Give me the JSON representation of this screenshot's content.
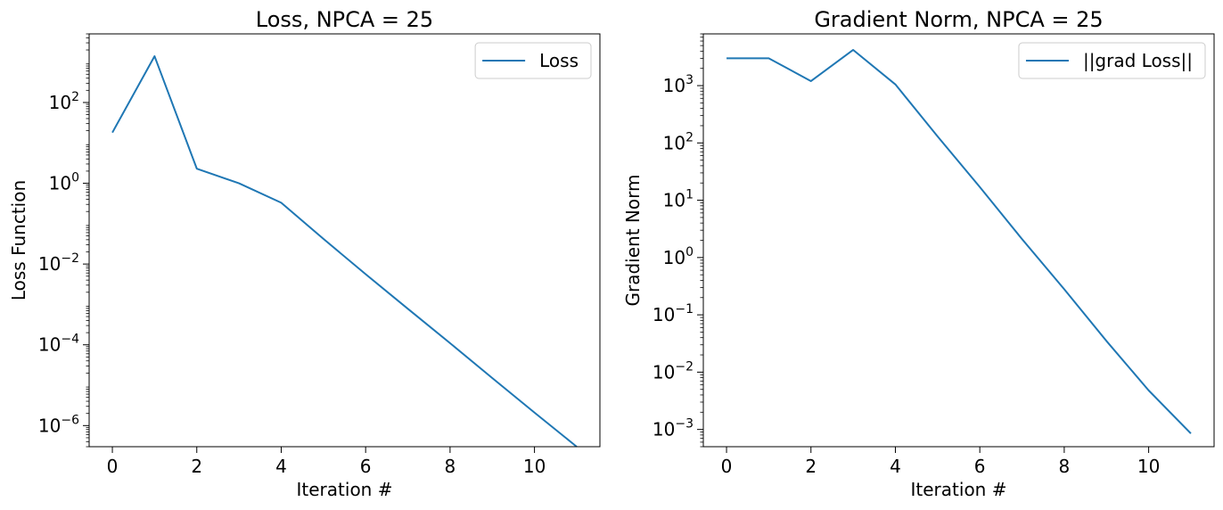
{
  "chart_data": [
    {
      "type": "line",
      "title": "Loss, NPCA = 25",
      "xlabel": "Iteration #",
      "ylabel": "Loss Function",
      "yscale": "log",
      "xlim": [
        -0.55,
        11.55
      ],
      "ylim": [
        3e-07,
        5000
      ],
      "xticks": [
        0,
        2,
        4,
        6,
        8,
        10
      ],
      "yticks": [
        {
          "value": 1e-06,
          "base": "10",
          "exp": "−6"
        },
        {
          "value": 0.0001,
          "base": "10",
          "exp": "−4"
        },
        {
          "value": 0.01,
          "base": "10",
          "exp": "−2"
        },
        {
          "value": 1,
          "base": "10",
          "exp": "0"
        },
        {
          "value": 100,
          "base": "10",
          "exp": "2"
        }
      ],
      "legend": {
        "placement": "top-right"
      },
      "grid": false,
      "series": [
        {
          "name": "Loss",
          "color": "#1f77b4",
          "x": [
            0,
            1,
            2,
            3,
            4,
            5,
            6,
            7,
            8,
            9,
            10,
            11
          ],
          "y": [
            18,
            1400,
            2.3,
            1.0,
            0.33,
            0.042,
            0.0056,
            0.00078,
            0.00011,
            1.5e-05,
            2.1e-06,
            3e-07
          ]
        }
      ]
    },
    {
      "type": "line",
      "title": "Gradient Norm, NPCA = 25",
      "xlabel": "Iteration #",
      "ylabel": "Gradient Norm",
      "yscale": "log",
      "xlim": [
        -0.55,
        11.55
      ],
      "ylim": [
        0.0005,
        8000
      ],
      "xticks": [
        0,
        2,
        4,
        6,
        8,
        10
      ],
      "yticks": [
        {
          "value": 0.001,
          "base": "10",
          "exp": "−3"
        },
        {
          "value": 0.01,
          "base": "10",
          "exp": "−2"
        },
        {
          "value": 0.1,
          "base": "10",
          "exp": "−1"
        },
        {
          "value": 1,
          "base": "10",
          "exp": "0"
        },
        {
          "value": 10,
          "base": "10",
          "exp": "1"
        },
        {
          "value": 100,
          "base": "10",
          "exp": "2"
        },
        {
          "value": 1000,
          "base": "10",
          "exp": "3"
        }
      ],
      "legend": {
        "placement": "top-right"
      },
      "grid": false,
      "series": [
        {
          "name": "||grad Loss||",
          "color": "#1f77b4",
          "x": [
            0,
            1,
            2,
            3,
            4,
            5,
            6,
            7,
            8,
            9,
            10,
            11
          ],
          "y": [
            3000,
            3000,
            1200,
            4200,
            1050,
            130,
            17,
            2.1,
            0.28,
            0.035,
            0.0048,
            0.00085
          ]
        }
      ]
    }
  ]
}
